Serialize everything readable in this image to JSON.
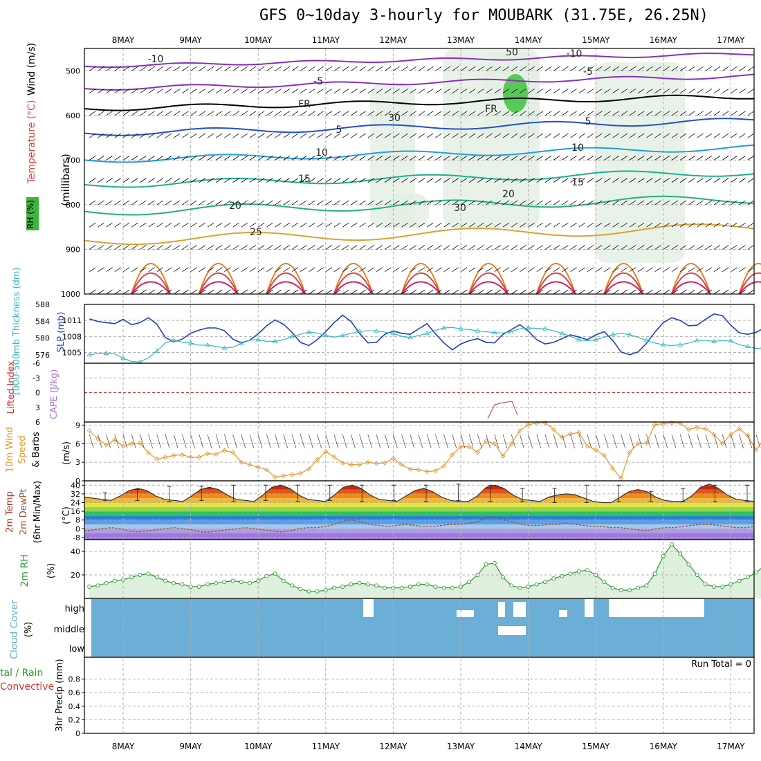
{
  "header": {
    "title": "GFS 0~10day 3-hourly for MOUBARK (31.75E, 26.25N)"
  },
  "colors": {
    "frame": "#000000",
    "grid": "#b0b0b0",
    "slp": "#1f3fbf",
    "thickness": "#30b8c0",
    "lifted_index": "#e03030",
    "cape": "#b070d0",
    "wind": "#e8962a",
    "rh": "#2a9a2a",
    "rh_fill": "#dff0df",
    "cloud": "#6baed6",
    "temp_line": "#333333",
    "dewpoint_line": "#a0522d"
  },
  "dates": [
    "8MAY",
    "9MAY",
    "10MAY",
    "11MAY",
    "12MAY",
    "13MAY",
    "14MAY",
    "15MAY",
    "16MAY",
    "17MAY"
  ],
  "panels": {
    "upper": {
      "axis_title": "(millibars)",
      "legend_rh": "RH (%)",
      "legend_temp": "Temperature (°C)",
      "legend_wind": "Wind (m/s)",
      "ticks": [
        "500",
        "600",
        "700",
        "800",
        "900",
        "1000"
      ],
      "contour_labels": [
        "-10",
        "-10",
        "-5",
        "-5",
        "FR",
        "FR",
        "5",
        "5",
        "10",
        "10",
        "15",
        "15",
        "20",
        "20",
        "25",
        "30",
        "30",
        "50"
      ]
    },
    "slp": {
      "label_thickness": "1000-500mb Thickness (dm)",
      "label_slp": "SLP (mb)",
      "ticks_left": [
        "576",
        "580",
        "584",
        "588"
      ],
      "ticks_right": [
        "1005",
        "1008",
        "1011"
      ]
    },
    "cape": {
      "label_li": "Lifted Index",
      "label_cape": "CAPE (J/kg)",
      "ticks": [
        "-6",
        "-3",
        "0",
        "3",
        "6"
      ]
    },
    "wind10m": {
      "label_a": "10m Wind",
      "label_b": "Speed",
      "label_c": "& Barbs",
      "unit": "(m/s)",
      "ticks": [
        "0",
        "3",
        "6",
        "9"
      ]
    },
    "temp": {
      "label_a": "2m Temp",
      "label_b": "2m DewPt",
      "label_c": "(6hr Min/Max)",
      "unit": "(°C)",
      "ticks": [
        "-8",
        "0",
        "8",
        "16",
        "24",
        "32",
        "40"
      ]
    },
    "rh2m": {
      "label": "2m RH",
      "unit": "(%)",
      "ticks": [
        "20",
        "40"
      ]
    },
    "cloud": {
      "label": "Cloud Cover",
      "unit": "(%)",
      "levels": [
        "high",
        "middle",
        "low"
      ]
    },
    "precip": {
      "label_a": "tal / Rain",
      "label_b": "Convective",
      "label_c": "3hr Precip (mm)",
      "ticks": [
        "0",
        "0.2",
        "0.4",
        "0.6",
        "0.8"
      ],
      "run_total": "Run Total = 0"
    }
  },
  "chart_data": [
    {
      "type": "line",
      "title": "SLP (mb)",
      "x_unit": "3-hourly steps from 7MAY 12Z",
      "y_range": [
        1003,
        1014
      ],
      "series": [
        {
          "name": "SLP (mb)",
          "values": [
            1011.3,
            1010.8,
            1010.6,
            1010.4,
            1011.2,
            1010.2,
            1010.6,
            1011.5,
            1010.3,
            1007.8,
            1007.0,
            1007.5,
            1008.6,
            1009.2,
            1009.6,
            1009.6,
            1009.1,
            1007.5,
            1006.8,
            1007.3,
            1008.5,
            1010.0,
            1011.1,
            1010.3,
            1008.8,
            1006.9,
            1006.3,
            1007.4,
            1008.9,
            1010.6,
            1012.0,
            1010.8,
            1008.6,
            1006.8,
            1006.9,
            1008.4,
            1009.0,
            1008.6,
            1008.4,
            1009.4,
            1010.4,
            1008.5,
            1006.8,
            1005.5,
            1006.6,
            1007.2,
            1007.6,
            1006.9,
            1006.8,
            1008.4,
            1009.3,
            1010.2,
            1009.0,
            1007.4,
            1006.6,
            1006.9,
            1007.6,
            1008.3,
            1007.9,
            1007.4,
            1008.3,
            1008.9,
            1007.3,
            1005.1,
            1004.6,
            1005.1,
            1006.7,
            1008.8,
            1010.6,
            1011.5,
            1011.0,
            1010.0,
            1010.1,
            1011.2,
            1012.2,
            1011.9,
            1010.1,
            1008.7,
            1008.4,
            1008.8,
            1009.6,
            1009.7,
            1010.2,
            1011.5,
            1011.3,
            1009.2,
            1008.2,
            1008.8,
            1009.9,
            1010.7,
            1011.4,
            1011.3,
            1010.3,
            1009.8,
            1009.6,
            1011.1,
            1011.9,
            1010.7,
            1008.6,
            1006.9,
            1007.4,
            1008.0,
            1007.3,
            1008.5
          ]
        }
      ]
    },
    {
      "type": "line",
      "title": "1000-500mb Thickness (dm)",
      "y_range": [
        574,
        588
      ],
      "series": [
        {
          "name": "1000-500mb Thickness (dm)",
          "values": [
            576.0,
            576.3,
            576.4,
            576.2,
            575.2,
            574.4,
            574.3,
            575.3,
            576.9,
            578.8,
            579.5,
            579.0,
            578.8,
            578.3,
            578.3,
            578.0,
            577.6,
            577.8,
            578.7,
            579.5,
            579.6,
            579.2,
            579.2,
            579.6,
            580.3,
            580.9,
            581.4,
            581.2,
            580.6,
            580.2,
            580.6,
            581.1,
            581.6,
            581.7,
            581.7,
            581.4,
            581.1,
            580.4,
            580.1,
            580.6,
            581.1,
            581.8,
            582.4,
            582.5,
            582.2,
            582.0,
            581.7,
            581.5,
            581.3,
            581.2,
            581.5,
            582.2,
            582.4,
            582.3,
            582.2,
            581.7,
            581.1,
            580.4,
            579.6,
            579.3,
            579.6,
            580.2,
            580.8,
            581.1,
            580.8,
            580.2,
            579.4,
            578.8,
            578.4,
            578.2,
            578.4,
            578.8,
            579.4,
            579.4,
            579.2,
            579.4,
            579.3,
            578.4,
            578.0,
            577.5,
            577.7,
            578.0,
            578.6,
            578.9,
            578.7,
            579.3,
            580.2,
            580.6,
            580.9,
            581.4,
            581.5,
            581.4,
            581.2,
            581.6,
            582.1,
            582.8,
            583.3,
            584.6,
            585.3,
            585.6,
            585.6,
            585.5,
            585.3,
            585.6
          ]
        }
      ]
    },
    {
      "type": "line",
      "title": "Lifted Index",
      "y_range": [
        -6,
        6
      ],
      "series": [
        {
          "name": "Lifted Index",
          "values": [
            null,
            null,
            null,
            null,
            null,
            null,
            null,
            null,
            null,
            null,
            null,
            null,
            null,
            null,
            null,
            null,
            null,
            null,
            null,
            null,
            null,
            null,
            null,
            null,
            null,
            null,
            null,
            null,
            null,
            null,
            null,
            null,
            null,
            null,
            null,
            null,
            null,
            null,
            null,
            null,
            null,
            null,
            null,
            null,
            null,
            null,
            null,
            null,
            null,
            null,
            null,
            null,
            null,
            null,
            null,
            null,
            null,
            null,
            null,
            null,
            null,
            null,
            null,
            null,
            null,
            null,
            null,
            null,
            null,
            null,
            null,
            null,
            null,
            null,
            null,
            null,
            null,
            null,
            null,
            null,
            null,
            null,
            null,
            null,
            null,
            null,
            null,
            null,
            null,
            null,
            null,
            null,
            null,
            null,
            null,
            null,
            null,
            null,
            null,
            null,
            null,
            null,
            null,
            null
          ]
        }
      ]
    },
    {
      "type": "line",
      "title": "CAPE (J/kg)",
      "series": [
        {
          "name": "CAPE (J/kg)",
          "values": [
            0,
            0,
            0,
            0,
            0,
            0,
            0,
            0,
            0,
            0,
            0,
            0,
            0,
            0,
            0,
            0,
            0,
            0,
            0,
            0,
            0,
            0,
            0,
            0,
            0,
            0,
            0,
            0,
            0,
            0,
            0,
            0,
            0,
            0,
            0,
            0,
            0,
            0,
            0,
            0,
            0,
            0,
            0,
            0,
            0,
            0,
            0,
            0,
            0,
            0,
            0,
            0,
            0,
            0,
            0,
            0,
            0,
            0,
            0,
            0,
            0,
            0,
            0,
            0,
            0,
            0,
            0,
            0,
            0,
            0,
            0,
            0,
            0,
            0,
            0,
            0,
            0,
            0,
            0,
            0,
            0,
            0,
            0,
            0,
            0,
            0,
            0,
            0,
            0,
            0,
            0,
            0,
            0,
            0,
            0,
            0,
            0,
            0,
            0,
            0,
            0,
            0,
            0,
            0
          ]
        }
      ]
    },
    {
      "type": "line",
      "title": "10m Wind Speed (m/s)",
      "y_range": [
        0,
        9.5
      ],
      "series": [
        {
          "name": "10m Wind Speed",
          "values": [
            8.1,
            6.8,
            5.8,
            6.6,
            5.6,
            6.0,
            6.1,
            4.5,
            3.5,
            3.8,
            4.1,
            4.2,
            3.8,
            3.8,
            4.4,
            4.3,
            4.9,
            4.6,
            3.0,
            2.6,
            2.2,
            1.8,
            0.6,
            0.8,
            1.0,
            1.2,
            1.9,
            3.4,
            4.7,
            3.9,
            2.9,
            2.6,
            2.6,
            3.0,
            2.8,
            2.9,
            3.6,
            2.6,
            1.9,
            1.8,
            1.5,
            1.6,
            2.4,
            4.2,
            5.5,
            5.5,
            4.6,
            6.4,
            6.0,
            4.0,
            6.0,
            8.1,
            9.1,
            9.3,
            9.4,
            8.3,
            7.0,
            7.6,
            7.8,
            5.6,
            5.0,
            4.1,
            2.0,
            0.4,
            4.6,
            6.0,
            6.1,
            9.1,
            9.2,
            9.4,
            9.3,
            8.3,
            8.6,
            8.4,
            7.5,
            6.0,
            7.5,
            8.4,
            7.3,
            5.0,
            6.9,
            6.8,
            7.0,
            7.5,
            8.4,
            9.3,
            7.3,
            4.2,
            4.3,
            4.5,
            3.8,
            4.3,
            3.7,
            4.2,
            4.2,
            3.9,
            3.1,
            3.3,
            2.7,
            1.3,
            2.3,
            3.4,
            2.4,
            3.6
          ]
        }
      ]
    },
    {
      "type": "area",
      "title": "2m Temp / DewPt (°C)",
      "y_range": [
        -10,
        44
      ],
      "series": [
        {
          "name": "2m Temp",
          "values": [
            29,
            28,
            27,
            26,
            30,
            35,
            37,
            35,
            30,
            27,
            26,
            25,
            30,
            36,
            38,
            36,
            31,
            27,
            26,
            25,
            31,
            38,
            40,
            37,
            31,
            27,
            26,
            25,
            31,
            38,
            40,
            37,
            31,
            27,
            26,
            25,
            30,
            35,
            37,
            34,
            29,
            26,
            25,
            25,
            30,
            38,
            40,
            37,
            31,
            27,
            26,
            25,
            29,
            31,
            32,
            31,
            28,
            25,
            24,
            24,
            29,
            34,
            36,
            34,
            29,
            26,
            25,
            25,
            30,
            38,
            41,
            37,
            31,
            27,
            26,
            25
          ]
        },
        {
          "name": "2m DewPt",
          "values": [
            -2,
            -1,
            0,
            1,
            0,
            -2,
            -3,
            -2,
            -1,
            0,
            1,
            0,
            -1,
            -3,
            -3,
            -2,
            -1,
            0,
            1,
            0,
            -1,
            -2,
            -3,
            -2,
            0,
            1,
            1,
            2,
            4,
            7,
            8,
            6,
            4,
            3,
            2,
            3,
            4,
            3,
            2,
            2,
            3,
            4,
            4,
            5,
            6,
            10,
            11,
            8,
            6,
            4,
            3,
            3,
            4,
            4,
            5,
            4,
            3,
            2,
            2,
            1,
            1,
            0,
            -1,
            -2,
            0,
            1,
            1,
            2,
            3,
            4,
            4,
            3,
            2,
            1,
            1,
            2
          ]
        },
        {
          "name": "6hr Max",
          "values": [
            33,
            36,
            39,
            39,
            40,
            40,
            40,
            40,
            40,
            40,
            40,
            41,
            40,
            37,
            37,
            40,
            40,
            34,
            37,
            40,
            40
          ]
        },
        {
          "name": "6hr Min",
          "values": [
            26,
            26,
            25,
            26,
            25,
            26,
            25,
            26,
            25,
            26,
            25,
            26,
            25,
            25,
            24,
            24,
            25,
            25,
            25,
            25,
            25
          ]
        }
      ]
    },
    {
      "type": "area",
      "title": "2m RH (%)",
      "y_range": [
        0,
        50
      ],
      "series": [
        {
          "name": "2m RH",
          "values": [
            10,
            11,
            13,
            15,
            16,
            18,
            20,
            21,
            18,
            15,
            13,
            12,
            10,
            10,
            12,
            13,
            14,
            15,
            14,
            13,
            15,
            19,
            21,
            15,
            11,
            8,
            6,
            6,
            7,
            9,
            10,
            12,
            13,
            12,
            11,
            9,
            9,
            9,
            10,
            12,
            12,
            10,
            9,
            9,
            10,
            14,
            20,
            29,
            30,
            18,
            11,
            9,
            10,
            12,
            14,
            17,
            19,
            21,
            23,
            24,
            20,
            14,
            9,
            7,
            7,
            9,
            11,
            21,
            36,
            46,
            38,
            29,
            20,
            12,
            10,
            10,
            12,
            15,
            18,
            22,
            28,
            35,
            28,
            19,
            10,
            8,
            9,
            10,
            11,
            12,
            13,
            14,
            15,
            16,
            17,
            18,
            16,
            14,
            12,
            11,
            13,
            15,
            14,
            12
          ]
        }
      ]
    },
    {
      "type": "table",
      "title": "3hr Precip (mm)",
      "y_range": [
        0,
        1
      ],
      "run_total": 0
    }
  ]
}
